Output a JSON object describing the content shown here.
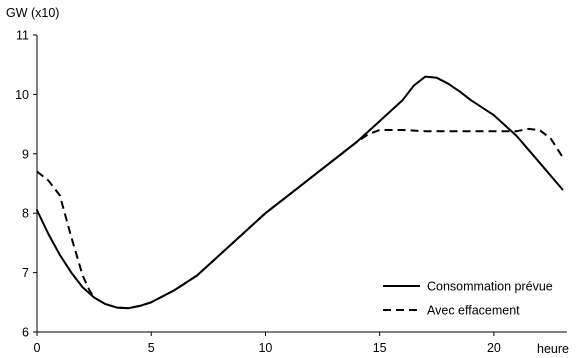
{
  "chart_data": {
    "type": "line",
    "title": "",
    "ylabel": "GW (x10)",
    "xlabel": "heure",
    "xlim": [
      0,
      23.2
    ],
    "ylim": [
      6,
      11
    ],
    "xticks": [
      0,
      5,
      10,
      15,
      20
    ],
    "yticks": [
      6,
      7,
      8,
      9,
      10,
      11
    ],
    "grid": false,
    "legend_position": "bottom-right",
    "series": [
      {
        "name": "Consommation prévue",
        "style": "solid",
        "color": "#000000",
        "x": [
          0,
          0.5,
          1,
          1.5,
          2,
          2.5,
          3,
          3.5,
          4,
          4.5,
          5,
          6,
          7,
          8,
          9,
          10,
          11,
          12,
          13,
          14,
          15,
          16,
          16.5,
          17,
          17.5,
          18,
          18.5,
          19,
          20,
          21,
          22,
          23
        ],
        "y": [
          8.05,
          7.65,
          7.3,
          7.0,
          6.75,
          6.58,
          6.47,
          6.41,
          6.4,
          6.44,
          6.5,
          6.7,
          6.95,
          7.3,
          7.65,
          8.0,
          8.3,
          8.6,
          8.9,
          9.2,
          9.55,
          9.9,
          10.15,
          10.3,
          10.28,
          10.18,
          10.05,
          9.9,
          9.65,
          9.3,
          8.85,
          8.4
        ]
      },
      {
        "name": "Avec effacement",
        "style": "dashed",
        "color": "#000000",
        "x": [
          0,
          0.5,
          1,
          1.5,
          2,
          2.3,
          2.5,
          3,
          3.5,
          4,
          4.5,
          5,
          6,
          7,
          8,
          9,
          10,
          11,
          12,
          13,
          14,
          14.5,
          15,
          16,
          17,
          18,
          19,
          20,
          21,
          21.5,
          22,
          22.5,
          23
        ],
        "y": [
          8.7,
          8.55,
          8.3,
          7.6,
          6.95,
          6.7,
          6.58,
          6.47,
          6.41,
          6.4,
          6.44,
          6.5,
          6.7,
          6.95,
          7.3,
          7.65,
          8.0,
          8.3,
          8.6,
          8.9,
          9.2,
          9.33,
          9.4,
          9.4,
          9.38,
          9.38,
          9.38,
          9.38,
          9.38,
          9.42,
          9.4,
          9.25,
          8.95
        ]
      }
    ]
  }
}
